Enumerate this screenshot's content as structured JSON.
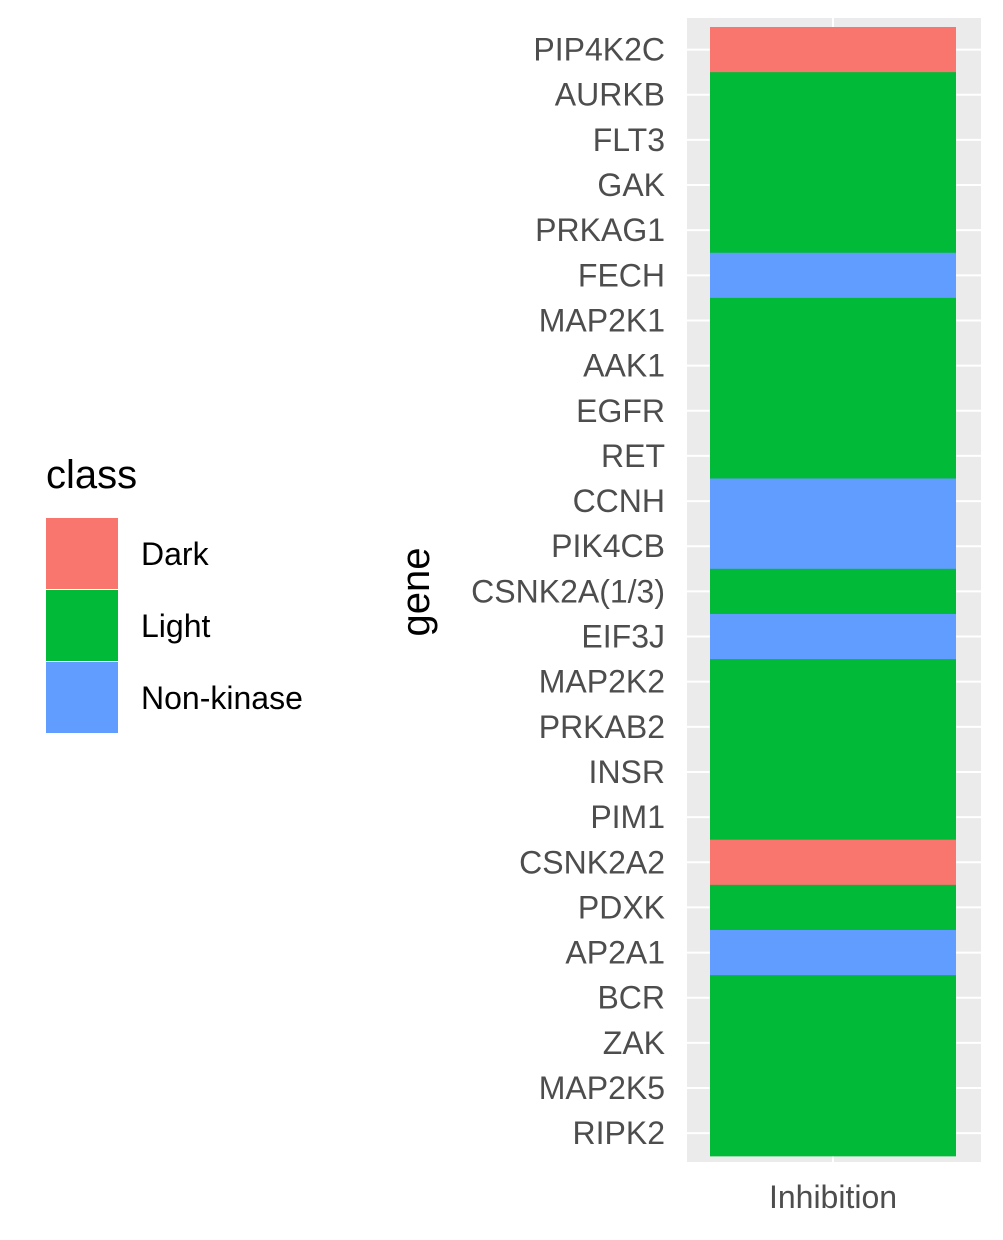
{
  "chart_data": {
    "type": "heatmap",
    "xlabel": "",
    "ylabel": "gene",
    "x_categories": [
      "Inhibition"
    ],
    "genes": [
      "PIP4K2C",
      "AURKB",
      "FLT3",
      "GAK",
      "PRKAG1",
      "FECH",
      "MAP2K1",
      "AAK1",
      "EGFR",
      "RET",
      "CCNH",
      "PIK4CB",
      "CSNK2A(1/3)",
      "EIF3J",
      "MAP2K2",
      "PRKAB2",
      "INSR",
      "PIM1",
      "CSNK2A2",
      "PDXK",
      "AP2A1",
      "BCR",
      "ZAK",
      "MAP2K5",
      "RIPK2"
    ],
    "classes": [
      "Dark",
      "Light",
      "Light",
      "Light",
      "Light",
      "Non-kinase",
      "Light",
      "Light",
      "Light",
      "Light",
      "Non-kinase",
      "Non-kinase",
      "Light",
      "Non-kinase",
      "Light",
      "Light",
      "Light",
      "Light",
      "Dark",
      "Light",
      "Non-kinase",
      "Light",
      "Light",
      "Light",
      "Light"
    ],
    "legend": {
      "title": "class",
      "placement": "left",
      "entries": [
        {
          "label": "Dark",
          "color": "#F8766D"
        },
        {
          "label": "Light",
          "color": "#00BA38"
        },
        {
          "label": "Non-kinase",
          "color": "#619CFF"
        }
      ]
    },
    "panel_background": "#EBEBEB",
    "grid": true
  }
}
